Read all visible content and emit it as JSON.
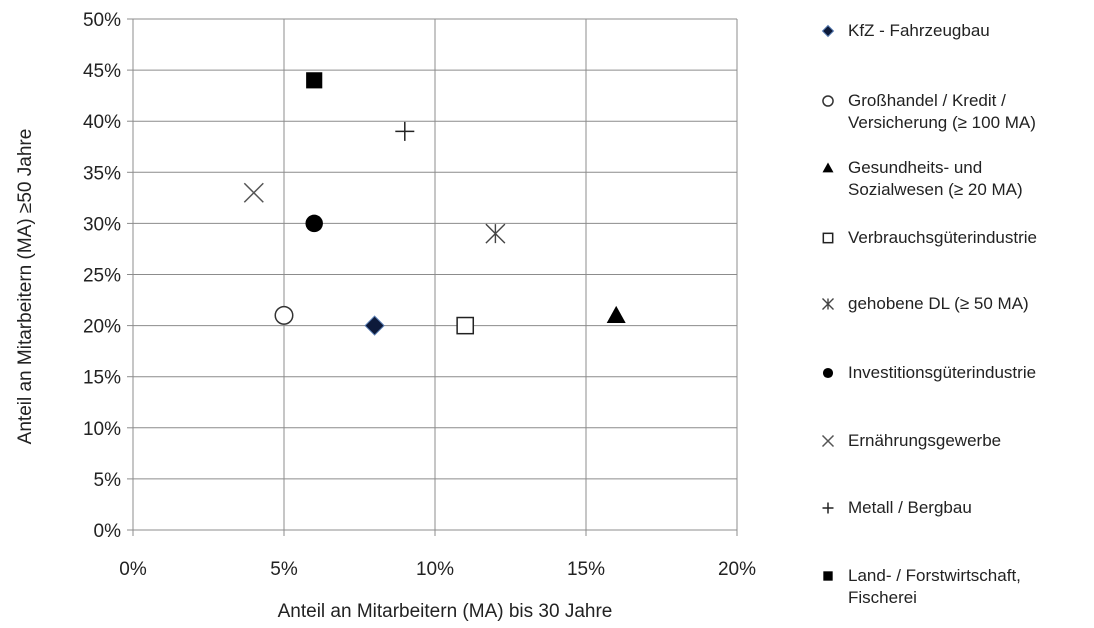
{
  "chart_data": {
    "type": "scatter",
    "title": "",
    "xlabel": "Anteil an Mitarbeitern (MA) bis 30 Jahre",
    "ylabel": "Anteil an Mitarbeitern (MA) ≥50 Jahre",
    "xlim": [
      0,
      20
    ],
    "ylim": [
      0,
      50
    ],
    "x_ticks": [
      "0%",
      "5%",
      "10%",
      "15%",
      "20%"
    ],
    "y_ticks": [
      "0%",
      "5%",
      "10%",
      "15%",
      "20%",
      "25%",
      "30%",
      "35%",
      "40%",
      "45%",
      "50%"
    ],
    "grid": true,
    "legend_position": "right",
    "series": [
      {
        "name": "KfZ - Fahrzeugbau",
        "marker": "diamond",
        "points": [
          {
            "x": 8,
            "y": 20
          }
        ]
      },
      {
        "name": "Großhandel / Kredit / Versicherung (≥ 100 MA)",
        "legend_label": "Großhandel / Kredit /\nVersicherung (≥ 100 MA)",
        "marker": "circle-open",
        "points": [
          {
            "x": 5,
            "y": 21
          }
        ]
      },
      {
        "name": "Gesundheits- und Sozialwesen (≥ 20 MA)",
        "legend_label": "Gesundheits- und\nSozialwesen (≥ 20 MA)",
        "marker": "triangle",
        "points": [
          {
            "x": 16,
            "y": 21
          }
        ]
      },
      {
        "name": "Verbrauchsgüterindustrie",
        "marker": "square-open",
        "points": [
          {
            "x": 11,
            "y": 20
          }
        ]
      },
      {
        "name": "gehobene DL (≥ 50 MA)",
        "marker": "star",
        "points": [
          {
            "x": 12,
            "y": 29
          }
        ]
      },
      {
        "name": "Investitionsgüterindustrie",
        "marker": "circle",
        "points": [
          {
            "x": 6,
            "y": 30
          }
        ]
      },
      {
        "name": "Ernährungsgewerbe",
        "marker": "x",
        "points": [
          {
            "x": 4,
            "y": 33
          }
        ]
      },
      {
        "name": "Metall / Bergbau",
        "marker": "plus",
        "points": [
          {
            "x": 9,
            "y": 39
          }
        ]
      },
      {
        "name": "Land- / Forstwirtschaft, Fischerei",
        "legend_label": "Land- / Forstwirtschaft,\nFischerei",
        "marker": "square",
        "points": [
          {
            "x": 6,
            "y": 44
          }
        ]
      }
    ]
  }
}
